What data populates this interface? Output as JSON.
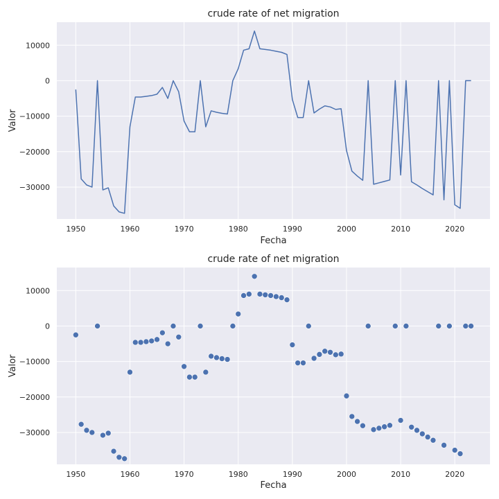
{
  "chart_data": [
    {
      "type": "line",
      "title": "crude rate of net migration",
      "xlabel": "Fecha",
      "ylabel": "Valor",
      "xlim": [
        1946.5,
        2026.5
      ],
      "ylim": [
        -39000,
        16500
      ],
      "xticks": [
        1950,
        1960,
        1970,
        1980,
        1990,
        2000,
        2010,
        2020
      ],
      "yticks": [
        10000,
        0,
        -10000,
        -20000,
        -30000
      ],
      "grid": true,
      "color": "#4c72b0",
      "x": [
        1950,
        1951,
        1952,
        1953,
        1954,
        1955,
        1956,
        1957,
        1958,
        1959,
        1960,
        1961,
        1962,
        1963,
        1964,
        1965,
        1966,
        1967,
        1968,
        1969,
        1970,
        1971,
        1972,
        1973,
        1974,
        1975,
        1976,
        1977,
        1978,
        1979,
        1980,
        1981,
        1982,
        1983,
        1984,
        1985,
        1986,
        1987,
        1988,
        1989,
        1990,
        1991,
        1992,
        1993,
        1994,
        1995,
        1996,
        1997,
        1998,
        1999,
        2000,
        2001,
        2002,
        2003,
        2004,
        2005,
        2006,
        2007,
        2008,
        2009,
        2010,
        2011,
        2012,
        2013,
        2014,
        2015,
        2016,
        2017,
        2018,
        2019,
        2020,
        2021,
        2022,
        2023
      ],
      "y": [
        -2500,
        -27700,
        -29400,
        -30000,
        0,
        -30800,
        -30200,
        -35300,
        -37000,
        -37400,
        -13000,
        -4600,
        -4600,
        -4400,
        -4200,
        -3800,
        -1900,
        -5000,
        0,
        -3100,
        -11400,
        -14400,
        -14400,
        0,
        -13000,
        -8500,
        -8900,
        -9200,
        -9400,
        0,
        3400,
        8600,
        9000,
        14000,
        9000,
        8800,
        8600,
        8300,
        8000,
        7400,
        -5300,
        -10400,
        -10400,
        0,
        -9100,
        -8000,
        -7100,
        -7400,
        -8100,
        -7900,
        -19700,
        -25500,
        -26900,
        -28100,
        0,
        -29200,
        -28800,
        -28400,
        -28000,
        0,
        -26600,
        0,
        -28500,
        -29400,
        -30400,
        -31300,
        -32200,
        0,
        -33600,
        0,
        -35000,
        -36000,
        0,
        0
      ]
    },
    {
      "type": "scatter",
      "title": "crude rate of net migration",
      "xlabel": "Fecha",
      "ylabel": "Valor",
      "xlim": [
        1946.5,
        2026.5
      ],
      "ylim": [
        -39000,
        16500
      ],
      "xticks": [
        1950,
        1960,
        1970,
        1980,
        1990,
        2000,
        2010,
        2020
      ],
      "yticks": [
        10000,
        0,
        -10000,
        -20000,
        -30000
      ],
      "grid": true,
      "color": "#4c72b0",
      "x": [
        1950,
        1951,
        1952,
        1953,
        1954,
        1955,
        1956,
        1957,
        1958,
        1959,
        1960,
        1961,
        1962,
        1963,
        1964,
        1965,
        1966,
        1967,
        1968,
        1969,
        1970,
        1971,
        1972,
        1973,
        1974,
        1975,
        1976,
        1977,
        1978,
        1979,
        1980,
        1981,
        1982,
        1983,
        1984,
        1985,
        1986,
        1987,
        1988,
        1989,
        1990,
        1991,
        1992,
        1993,
        1994,
        1995,
        1996,
        1997,
        1998,
        1999,
        2000,
        2001,
        2002,
        2003,
        2004,
        2005,
        2006,
        2007,
        2008,
        2009,
        2010,
        2011,
        2012,
        2013,
        2014,
        2015,
        2016,
        2017,
        2018,
        2019,
        2020,
        2021,
        2022,
        2023
      ],
      "y": [
        -2500,
        -27700,
        -29400,
        -30000,
        0,
        -30800,
        -30200,
        -35300,
        -37000,
        -37400,
        -13000,
        -4600,
        -4600,
        -4400,
        -4200,
        -3800,
        -1900,
        -5000,
        0,
        -3100,
        -11400,
        -14400,
        -14400,
        0,
        -13000,
        -8500,
        -8900,
        -9200,
        -9400,
        0,
        3400,
        8600,
        9000,
        14000,
        9000,
        8800,
        8600,
        8300,
        8000,
        7400,
        -5300,
        -10400,
        -10400,
        0,
        -9100,
        -8000,
        -7100,
        -7400,
        -8100,
        -7900,
        -19700,
        -25500,
        -26900,
        -28100,
        0,
        -29200,
        -28800,
        -28400,
        -28000,
        0,
        -26600,
        0,
        -28500,
        -29400,
        -30400,
        -31300,
        -32200,
        0,
        -33600,
        0,
        -35000,
        -36000,
        0,
        0
      ]
    }
  ]
}
